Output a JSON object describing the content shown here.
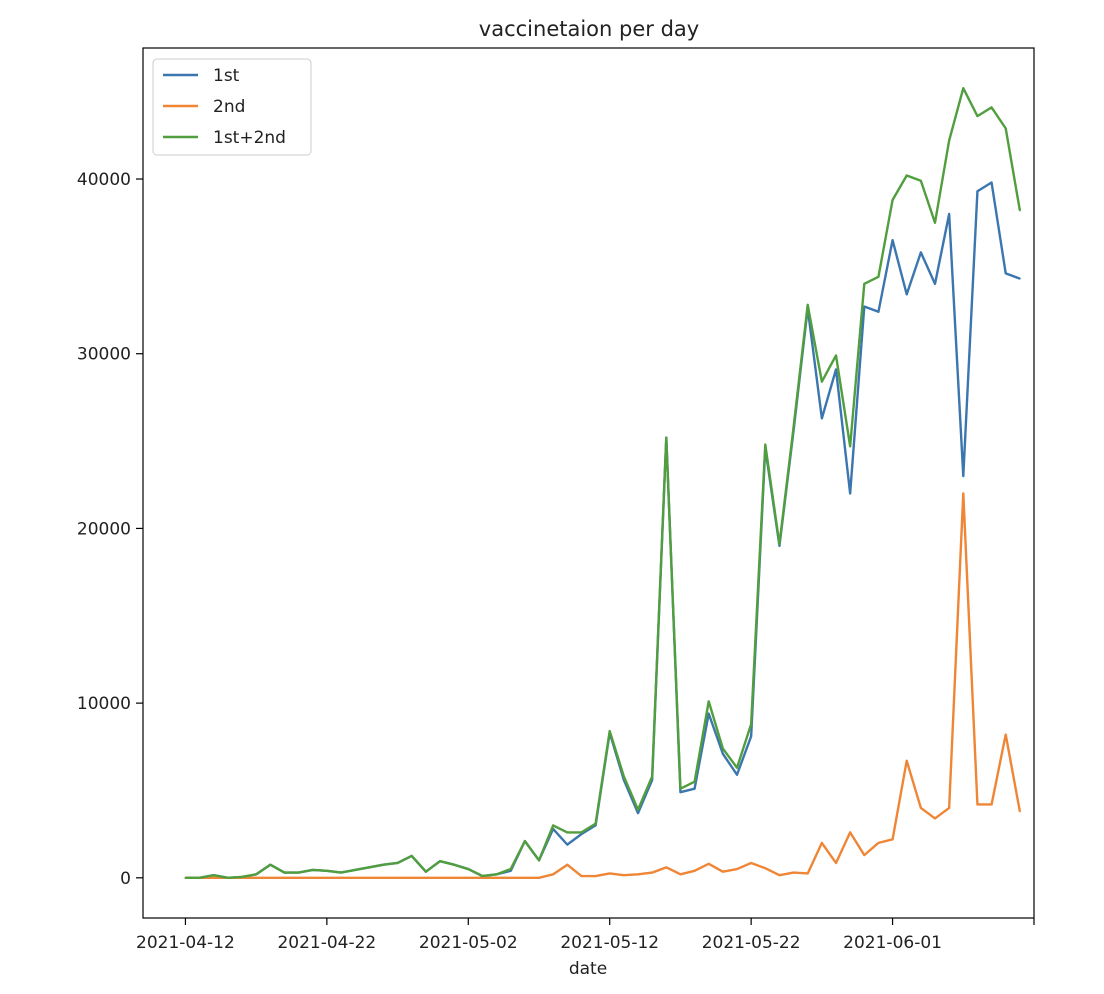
{
  "chart_data": {
    "type": "line",
    "title": "vaccinetaion per day",
    "xlabel": "date",
    "ylabel": "",
    "x_start": "2021-04-12",
    "xlim": [
      "2021-04-09",
      "2021-06-11"
    ],
    "ylim": [
      -2300,
      47500
    ],
    "xticks": [
      "2021-04-12",
      "2021-04-22",
      "2021-05-02",
      "2021-05-12",
      "2021-05-22",
      "2021-06-01",
      "2021-06-11"
    ],
    "xtick_labels": [
      "2021-04-12",
      "2021-04-22",
      "2021-05-02",
      "2021-05-12",
      "2021-05-22",
      "2021-06-01",
      ""
    ],
    "yticks": [
      0,
      10000,
      20000,
      30000,
      40000
    ],
    "grid": false,
    "legend_position": "top-left",
    "series": [
      {
        "name": "1st",
        "color": "#3b76af",
        "values": [
          0,
          0,
          150,
          0,
          50,
          200,
          750,
          300,
          300,
          450,
          400,
          300,
          450,
          600,
          750,
          850,
          1250,
          350,
          950,
          750,
          500,
          100,
          200,
          400,
          2100,
          1000,
          2800,
          1900,
          2500,
          3000,
          8300,
          5600,
          3700,
          5600,
          25200,
          4900,
          5100,
          9400,
          7100,
          5900,
          8100,
          24600,
          19000,
          25600,
          32600,
          26300,
          29100,
          22000,
          32700,
          32400,
          36500,
          33400,
          35800,
          34000,
          38000,
          23000,
          39300,
          39800,
          34600,
          34300
        ]
      },
      {
        "name": "2nd",
        "color": "#ef8636",
        "values": [
          0,
          0,
          0,
          0,
          0,
          0,
          0,
          0,
          0,
          0,
          0,
          0,
          0,
          0,
          0,
          0,
          0,
          0,
          0,
          0,
          0,
          0,
          0,
          0,
          0,
          0,
          200,
          750,
          100,
          100,
          250,
          150,
          200,
          300,
          600,
          200,
          400,
          800,
          350,
          500,
          850,
          550,
          150,
          300,
          250,
          2000,
          850,
          2600,
          1300,
          2000,
          2200,
          6700,
          4000,
          3400,
          4000,
          22000,
          4200,
          4200,
          8200,
          3800
        ]
      },
      {
        "name": "1st+2nd",
        "color": "#519e3e",
        "values": [
          0,
          0,
          150,
          0,
          50,
          200,
          750,
          300,
          300,
          450,
          400,
          300,
          450,
          600,
          750,
          850,
          1250,
          350,
          950,
          750,
          500,
          100,
          200,
          500,
          2100,
          1000,
          3000,
          2600,
          2600,
          3100,
          8400,
          5800,
          3900,
          5800,
          25200,
          5100,
          5500,
          10100,
          7400,
          6300,
          8800,
          24800,
          19100,
          25800,
          32800,
          28400,
          29900,
          24700,
          34000,
          34400,
          38800,
          40200,
          39900,
          37500,
          42200,
          45200,
          43600,
          44100,
          42900,
          38200
        ]
      }
    ]
  }
}
